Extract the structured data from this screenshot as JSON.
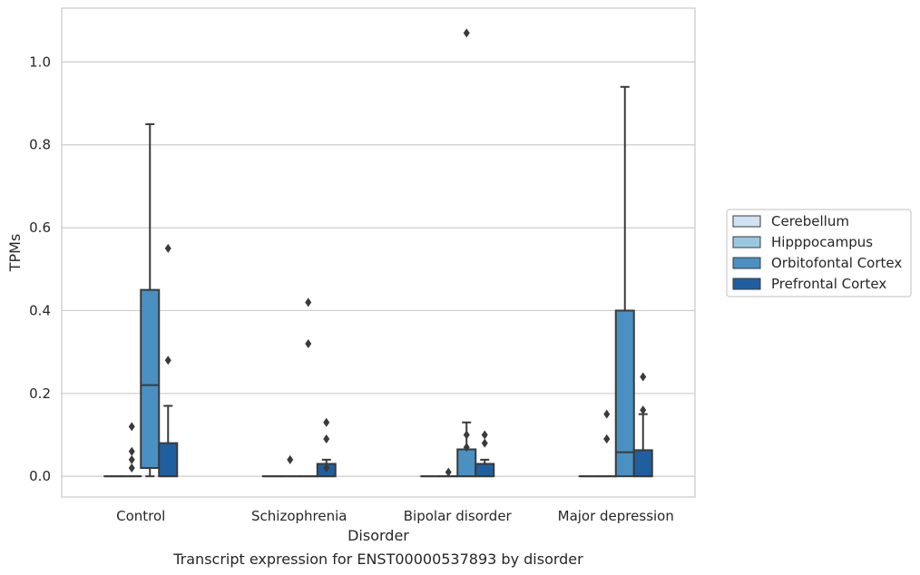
{
  "chart_data": {
    "type": "box",
    "caption": "Transcript expression for ENST00000537893 by disorder",
    "xlabel": "Disorder",
    "ylabel": "TPMs",
    "ylim": [
      -0.05,
      1.13
    ],
    "yticks": [
      0.0,
      0.2,
      0.4,
      0.6,
      0.8,
      1.0
    ],
    "ytick_labels": [
      "0.0",
      "0.2",
      "0.4",
      "0.6",
      "0.8",
      "1.0"
    ],
    "grid": true,
    "legend_placement": "right",
    "categories": [
      "Control",
      "Schizophrenia",
      "Bipolar disorder",
      "Major depression"
    ],
    "series": [
      {
        "name": "Cerebellum",
        "color": "#d1e2f2",
        "boxes": [
          {
            "q1": 0,
            "median": 0,
            "q3": 0,
            "whislo": 0,
            "whishi": 0,
            "fliers": []
          },
          {
            "q1": 0,
            "median": 0,
            "q3": 0,
            "whislo": 0,
            "whishi": 0,
            "fliers": []
          },
          {
            "q1": 0,
            "median": 0,
            "q3": 0,
            "whislo": 0,
            "whishi": 0,
            "fliers": []
          },
          {
            "q1": 0,
            "median": 0,
            "q3": 0,
            "whislo": 0,
            "whishi": 0,
            "fliers": []
          }
        ]
      },
      {
        "name": "Hipppocampus",
        "color": "#9ac7e0",
        "boxes": [
          {
            "q1": 0,
            "median": 0,
            "q3": 0,
            "whislo": 0,
            "whishi": 0,
            "fliers": [
              0.02,
              0.06,
              0.04,
              0.12
            ]
          },
          {
            "q1": 0,
            "median": 0,
            "q3": 0,
            "whislo": 0,
            "whishi": 0,
            "fliers": [
              0.04
            ]
          },
          {
            "q1": 0,
            "median": 0,
            "q3": 0,
            "whislo": 0,
            "whishi": 0,
            "fliers": [
              0.01
            ]
          },
          {
            "q1": 0,
            "median": 0,
            "q3": 0,
            "whislo": 0,
            "whishi": 0,
            "fliers": [
              0.09,
              0.09,
              0.15
            ]
          }
        ]
      },
      {
        "name": "Orbitofontal Cortex",
        "color": "#4a90c2",
        "boxes": [
          {
            "q1": 0.02,
            "median": 0.22,
            "q3": 0.45,
            "whislo": 0,
            "whishi": 0.85,
            "fliers": []
          },
          {
            "q1": 0,
            "median": 0,
            "q3": 0,
            "whislo": 0,
            "whishi": 0,
            "fliers": [
              0.32,
              0.42
            ]
          },
          {
            "q1": 0,
            "median": 0,
            "q3": 0.065,
            "whislo": 0,
            "whishi": 0.13,
            "fliers": [
              0.07,
              0.1,
              1.07
            ]
          },
          {
            "q1": 0,
            "median": 0.058,
            "q3": 0.4,
            "whislo": 0,
            "whishi": 0.94,
            "fliers": []
          }
        ]
      },
      {
        "name": "Prefrontal Cortex",
        "color": "#1f5fa0",
        "boxes": [
          {
            "q1": 0,
            "median": 0,
            "q3": 0.08,
            "whislo": 0,
            "whishi": 0.17,
            "fliers": [
              0.28,
              0.55
            ]
          },
          {
            "q1": 0,
            "median": 0,
            "q3": 0.03,
            "whislo": 0,
            "whishi": 0.04,
            "fliers": [
              0.02,
              0.09,
              0.13
            ]
          },
          {
            "q1": 0,
            "median": 0,
            "q3": 0.03,
            "whislo": 0,
            "whishi": 0.04,
            "fliers": [
              0.08,
              0.1
            ]
          },
          {
            "q1": 0,
            "median": 0,
            "q3": 0.063,
            "whislo": 0,
            "whishi": 0.15,
            "fliers": [
              0.16,
              0.24
            ]
          }
        ]
      }
    ]
  }
}
